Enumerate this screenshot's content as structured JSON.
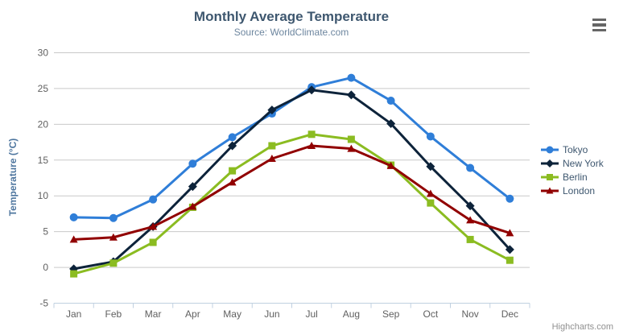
{
  "chart": {
    "title": "Monthly Average Temperature",
    "subtitle": "Source: WorldClimate.com",
    "credits": "Highcharts.com",
    "menu_icon": "hamburger-menu-icon",
    "colors": {
      "background": "#ffffff",
      "title_text": "#3E576F",
      "subtitle_text": "#6D869F",
      "axis_label": "#606060",
      "y_axis_title": "#4d759e",
      "grid_line": "#C9C9C9",
      "axis_line": "#C0D0E0",
      "legend_text": "#3E576F",
      "credits_text": "#909090",
      "menu_icon": "#666666"
    }
  },
  "chart_data": {
    "type": "line",
    "title": "Monthly Average Temperature",
    "subtitle": "Source: WorldClimate.com",
    "xlabel": "",
    "ylabel": "Temperature (°C)",
    "categories": [
      "Jan",
      "Feb",
      "Mar",
      "Apr",
      "May",
      "Jun",
      "Jul",
      "Aug",
      "Sep",
      "Oct",
      "Nov",
      "Dec"
    ],
    "ylim": [
      -5,
      30
    ],
    "y_tick_step": 5,
    "y_tick_labels": [
      "-5",
      "0",
      "5",
      "10",
      "15",
      "20",
      "25",
      "30"
    ],
    "grid": "horizontal",
    "legend_position": "right",
    "series": [
      {
        "name": "Tokyo",
        "color": "#2f7ed8",
        "symbol": "circle",
        "values": [
          7.0,
          6.9,
          9.5,
          14.5,
          18.2,
          21.5,
          25.2,
          26.5,
          23.3,
          18.3,
          13.9,
          9.6
        ]
      },
      {
        "name": "New York",
        "color": "#0d233a",
        "symbol": "diamond",
        "values": [
          -0.2,
          0.8,
          5.7,
          11.3,
          17.0,
          22.0,
          24.8,
          24.1,
          20.1,
          14.1,
          8.6,
          2.5
        ]
      },
      {
        "name": "Berlin",
        "color": "#8bbc21",
        "symbol": "square",
        "values": [
          -0.9,
          0.6,
          3.5,
          8.4,
          13.5,
          17.0,
          18.6,
          17.9,
          14.3,
          9.0,
          3.9,
          1.0
        ]
      },
      {
        "name": "London",
        "color": "#910000",
        "symbol": "triangle",
        "values": [
          3.9,
          4.2,
          5.7,
          8.5,
          11.9,
          15.2,
          17.0,
          16.6,
          14.2,
          10.3,
          6.6,
          4.8
        ]
      }
    ]
  }
}
